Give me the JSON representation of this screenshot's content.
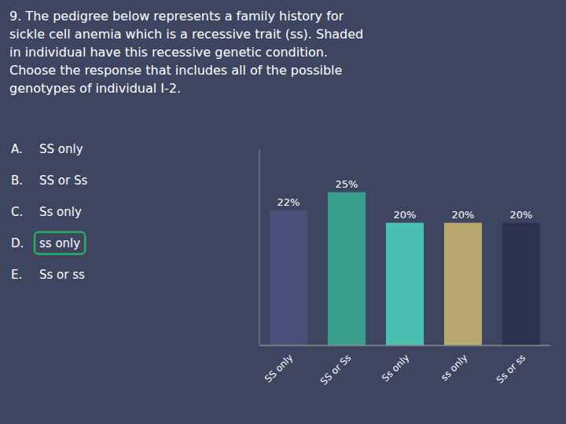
{
  "chart_data": {
    "type": "bar",
    "title": "9. The pedigree below represents a family history for\nsickle cell anemia which is a recessive trait (ss).  Shaded\nin individual have this recessive genetic condition.\nChoose the response that includes all of the possible\ngenotypes of individual I-2.",
    "annotations": [
      {
        "label": "A.",
        "text": "SS only"
      },
      {
        "label": "B.",
        "text": "SS or Ss"
      },
      {
        "label": "C.",
        "text": "Ss only"
      },
      {
        "label": "D.",
        "text": "ss only",
        "color": "#27ae60"
      },
      {
        "label": "E.",
        "text": "Ss or ss"
      }
    ],
    "categories": [
      "SS only",
      "SS or Ss",
      "Ss only",
      "ss only",
      "Ss or ss"
    ],
    "values": [
      22,
      25,
      20,
      20,
      20
    ],
    "value_labels": [
      "22%",
      "25%",
      "20%",
      "20%",
      "20%"
    ],
    "colors": [
      "#4a4f7a",
      "#3a9e8c",
      "#4bbfb0",
      "#b8a870",
      "#2d3250"
    ],
    "data_labels": true,
    "ylim": [
      0,
      32
    ],
    "yticks": [],
    "tick_labels": "x",
    "grid": false
  }
}
